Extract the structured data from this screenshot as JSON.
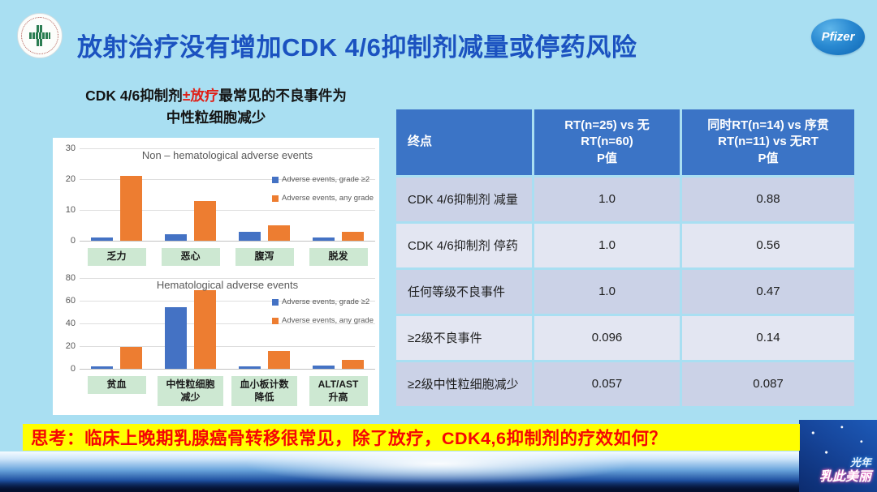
{
  "header": {
    "title": "放射治疗没有增加CDK 4/6抑制剂减量或停药风险",
    "pfizer_logo_text": "Pfizer",
    "hospital_logo": "hospital-seal-green-cross"
  },
  "subtitle": {
    "part1": "CDK 4/6抑制剂",
    "highlight": "±放疗",
    "part2": "最常见的不良事件为",
    "line2": "中性粒细胞减少"
  },
  "chart_data": [
    {
      "type": "bar",
      "title": "Non – hematological adverse events",
      "categories": [
        "乏力",
        "恶心",
        "腹泻",
        "脱发"
      ],
      "category_lines": [
        [
          "乏力"
        ],
        [
          "恶心"
        ],
        [
          "腹泻"
        ],
        [
          "脱发"
        ]
      ],
      "series": [
        {
          "name": "Adverse events, grade ≥2",
          "color": "#4472C4",
          "values": [
            1,
            2,
            3,
            1
          ]
        },
        {
          "name": "Adverse events, any grade",
          "color": "#ED7D31",
          "values": [
            21,
            13,
            5,
            3
          ]
        }
      ],
      "ylim": [
        0,
        30
      ],
      "yticks": [
        0,
        10,
        20,
        30
      ],
      "grid": true,
      "legend_position": "right"
    },
    {
      "type": "bar",
      "title": "Hematological adverse events",
      "categories": [
        "贫血",
        "中性粒细胞减少",
        "血小板计数降低",
        "ALT/AST升高"
      ],
      "category_lines": [
        [
          "贫血"
        ],
        [
          "中性粒细胞",
          "减少"
        ],
        [
          "血小板计数",
          "降低"
        ],
        [
          "ALT/AST",
          "升高"
        ]
      ],
      "series": [
        {
          "name": "Adverse events, grade ≥2",
          "color": "#4472C4",
          "values": [
            2,
            54,
            2,
            3
          ]
        },
        {
          "name": "Adverse events, any grade",
          "color": "#ED7D31",
          "values": [
            19,
            69,
            16,
            8
          ]
        }
      ],
      "ylim": [
        0,
        80
      ],
      "yticks": [
        0,
        20,
        40,
        60,
        80
      ],
      "grid": true,
      "legend_position": "right"
    }
  ],
  "table": {
    "headers": {
      "endpoint": "终点",
      "col2": "RT(n=25) vs 无RT(n=60)\nP值",
      "col3": "同时RT(n=14) vs 序贯\nRT(n=11) vs 无RT\nP值"
    },
    "rows": [
      {
        "endpoint": "CDK 4/6抑制剂 减量",
        "p1": "1.0",
        "p2": "0.88"
      },
      {
        "endpoint": "CDK 4/6抑制剂 停药",
        "p1": "1.0",
        "p2": "0.56"
      },
      {
        "endpoint": "任何等级不良事件",
        "p1": "1.0",
        "p2": "0.47"
      },
      {
        "endpoint": "≥2级不良事件",
        "p1": "0.096",
        "p2": "0.14"
      },
      {
        "endpoint": "≥2级中性粒细胞减少",
        "p1": "0.057",
        "p2": "0.087"
      }
    ]
  },
  "footer": {
    "question": "思考：临床上晚期乳腺癌骨转移很常见，除了放疗，CDK4,6抑制剂的疗效如何？"
  },
  "watermark": {
    "line1": "光年",
    "line2": "乳此美丽"
  },
  "colors": {
    "slide_bg": "#A9DFF2",
    "title_blue": "#1B52C0",
    "subtitle_red": "#E02018",
    "bar_blue": "#4472C4",
    "bar_orange": "#ED7D31",
    "cat_label_bg": "#CDE8D2",
    "table_header_bg": "#3B74C6",
    "row_dark": "#CBD2E7",
    "row_light": "#E3E6F2",
    "banner_bg": "#FFFF00",
    "banner_text": "#F50505"
  }
}
